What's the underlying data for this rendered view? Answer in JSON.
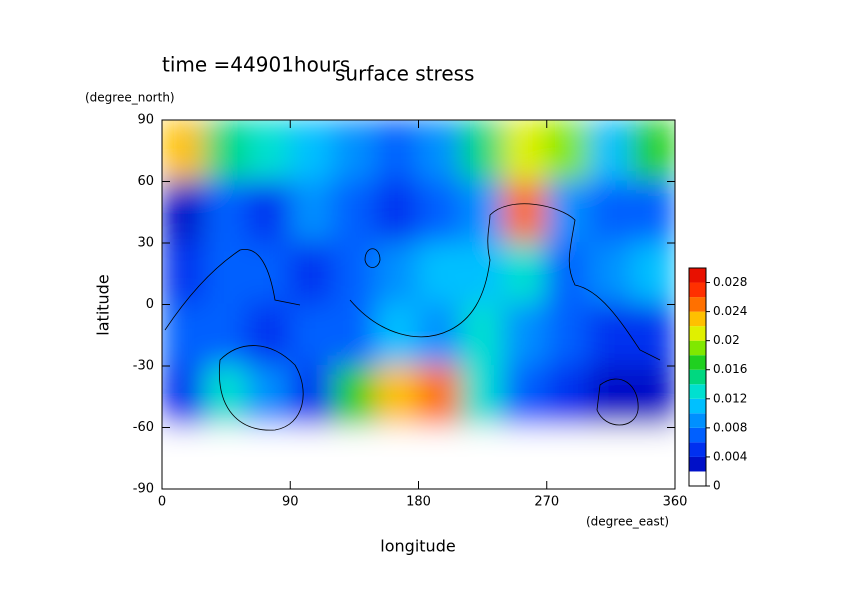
{
  "chart_data": {
    "type": "contour",
    "title": "surface stress",
    "subtitle": "time =44901hours",
    "x_label": "longitude",
    "y_label": "latitude",
    "x_unit": "(degree_east)",
    "y_unit": "(degree_north)",
    "x": [
      15,
      45,
      75,
      105,
      135,
      165,
      195,
      225,
      255,
      285,
      315,
      345
    ],
    "y": [
      75,
      45,
      15,
      -15,
      -45,
      -75
    ],
    "z": [
      [
        0.022,
        0.014,
        0.012,
        0.01,
        0.008,
        0.006,
        0.008,
        0.014,
        0.02,
        0.018,
        0.01,
        0.016
      ],
      [
        0.002,
        0.006,
        0.004,
        0.008,
        0.006,
        0.004,
        0.006,
        0.008,
        0.024,
        0.008,
        0.006,
        0.006
      ],
      [
        0.004,
        0.006,
        0.006,
        0.004,
        0.006,
        0.008,
        0.01,
        0.01,
        0.012,
        0.006,
        0.008,
        0.01
      ],
      [
        0.006,
        0.006,
        0.004,
        0.006,
        0.006,
        0.01,
        0.008,
        0.012,
        0.008,
        0.006,
        0.004,
        0.004
      ],
      [
        0.004,
        0.012,
        0.008,
        0.004,
        0.016,
        0.022,
        0.024,
        0.012,
        0.006,
        0.004,
        0.002,
        0.002
      ],
      [
        0,
        0,
        0,
        0,
        0,
        0,
        0,
        0,
        0,
        0,
        0,
        0
      ]
    ],
    "xlim": [
      0,
      360
    ],
    "xticks": [
      0,
      90,
      180,
      270,
      360
    ],
    "ylim": [
      -90,
      90
    ],
    "yticks": [
      -90,
      -60,
      -30,
      0,
      30,
      60,
      90
    ],
    "levels": [
      0,
      0.002,
      0.004,
      0.006,
      0.008,
      0.01,
      0.012,
      0.014,
      0.016,
      0.018,
      0.02,
      0.022,
      0.024,
      0.026,
      0.028,
      0.03
    ],
    "colors": [
      "#ffffff",
      "#0010c8",
      "#0030f0",
      "#0060ff",
      "#0090ff",
      "#00c0ff",
      "#00e0d0",
      "#00d880",
      "#20d020",
      "#80e800",
      "#e0f000",
      "#ffc000",
      "#ff7000",
      "#ff3000",
      "#e81000"
    ],
    "cticks": [
      0,
      0.004,
      0.008,
      0.012,
      0.016,
      0.02,
      0.024,
      0.028
    ]
  }
}
